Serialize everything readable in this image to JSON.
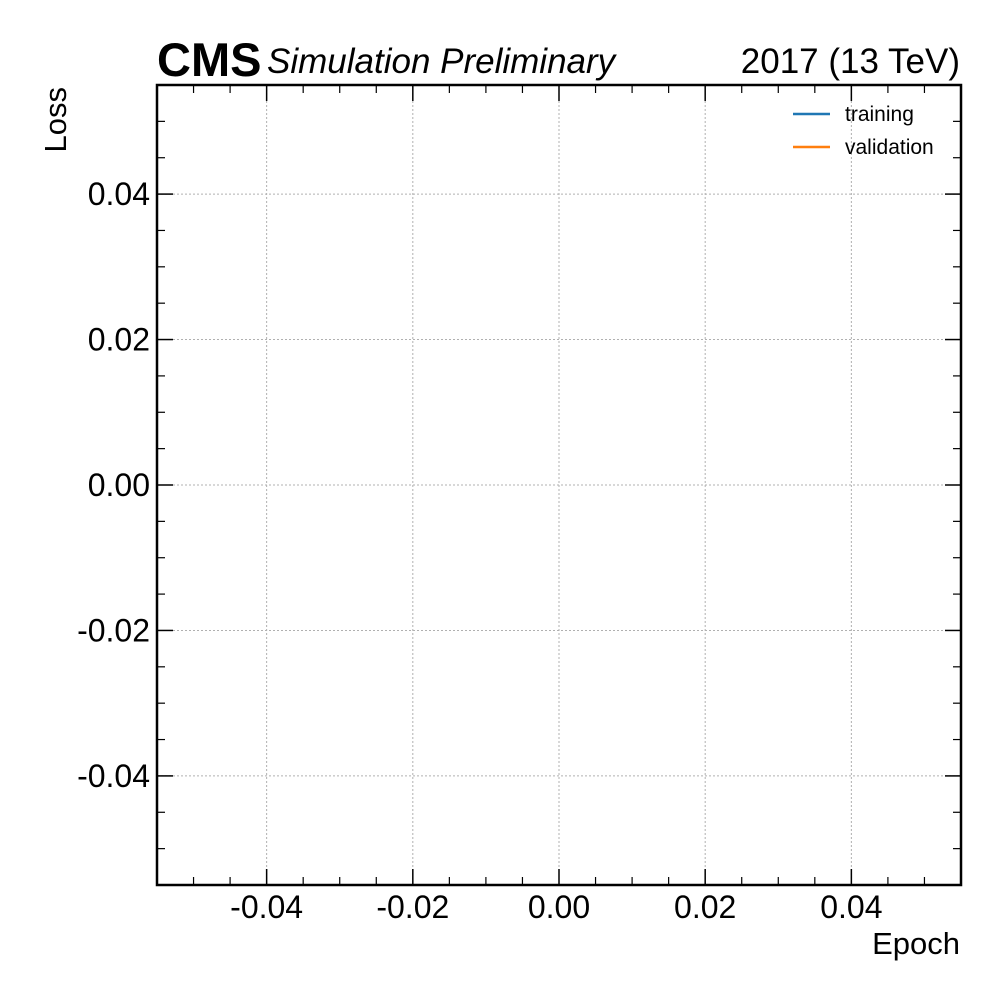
{
  "header": {
    "experiment": "CMS",
    "status": "Simulation Preliminary",
    "lumi": "2017 (13 TeV)"
  },
  "chart_data": {
    "type": "line",
    "xlabel": "Epoch",
    "ylabel": "Loss",
    "xlim": [
      -0.055,
      0.055
    ],
    "ylim": [
      -0.055,
      0.055
    ],
    "x_ticks": [
      -0.04,
      -0.02,
      0.0,
      0.02,
      0.04
    ],
    "x_tick_labels": [
      "-0.04",
      "-0.02",
      "0.00",
      "0.02",
      "0.04"
    ],
    "y_ticks": [
      -0.04,
      -0.02,
      0.0,
      0.02,
      0.04
    ],
    "y_tick_labels": [
      "-0.04",
      "-0.02",
      "0.00",
      "0.02",
      "0.04"
    ],
    "grid": true,
    "legend_position": "top-right",
    "series": [
      {
        "name": "training",
        "color": "#1f77b4",
        "x": [],
        "y": []
      },
      {
        "name": "validation",
        "color": "#ff7f0e",
        "x": [],
        "y": []
      }
    ]
  }
}
